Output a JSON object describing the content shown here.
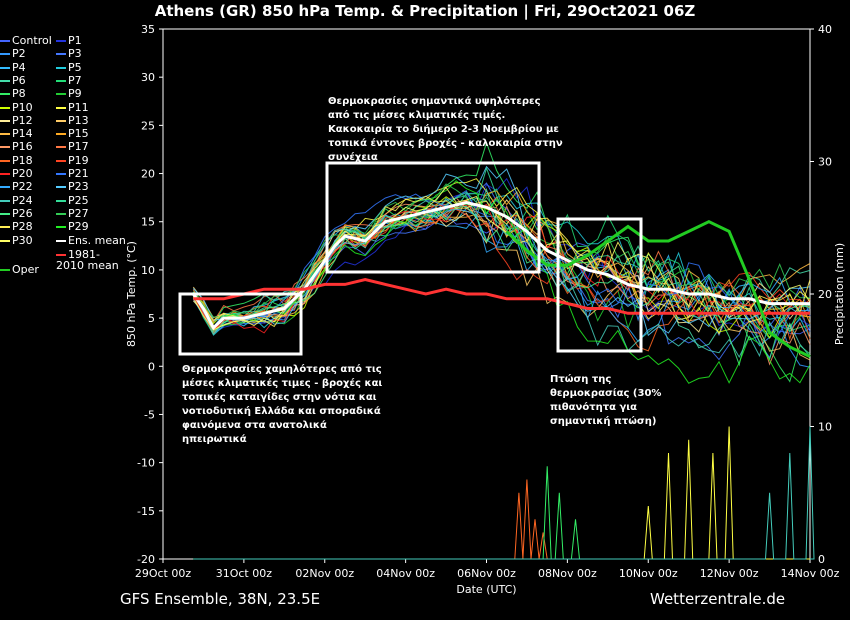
{
  "title": "Athens  (GR)  850 hPa Temp. & Precipitation | Fri, 29Oct2021 06Z",
  "footer_left": "GFS Ensemble, 38N, 23.5E",
  "footer_right": "Wetterzentrale.de",
  "annotations": {
    "top": [
      "Θερμοκρασίες σημαντικά υψηλότερες",
      "από τις μέσες κλιματικές τιμές.",
      "Κακοκαιρία το διήμερο 2-3 Νοεμβρίου με",
      "τοπικά έντονες βροχές - καλοκαιρία στην",
      "συνέχεια"
    ],
    "bottom_left": [
      "Θερμοκρασίες χαμηλότερες από τις",
      "μέσες κλιματικές τιμες - βροχές και",
      "τοπικές καταιγίδες στην νότια και",
      "νοτιοδυτική Ελλάδα και σποραδικά",
      "φαινόμενα στα ανατολικά",
      "ηπειρωτικά"
    ],
    "bottom_right": [
      "Πτώση της",
      "θερμοκρασίας (30%",
      "πιθανότητα για",
      "σημαντική πτώση)"
    ]
  },
  "legend": [
    {
      "label": "Control",
      "color": "#4466ff"
    },
    {
      "label": "P1",
      "color": "#2233dd"
    },
    {
      "label": "P2",
      "color": "#3399ff"
    },
    {
      "label": "P3",
      "color": "#4477ff"
    },
    {
      "label": "P4",
      "color": "#33bbff"
    },
    {
      "label": "P5",
      "color": "#22ccdd"
    },
    {
      "label": "P6",
      "color": "#44ddaa"
    },
    {
      "label": "P7",
      "color": "#22dd77"
    },
    {
      "label": "P8",
      "color": "#33ee66"
    },
    {
      "label": "P9",
      "color": "#22cc33"
    },
    {
      "label": "P10",
      "color": "#ccff00"
    },
    {
      "label": "P11",
      "color": "#ffff44"
    },
    {
      "label": "P12",
      "color": "#ffee99"
    },
    {
      "label": "P13",
      "color": "#ffcc66"
    },
    {
      "label": "P14",
      "color": "#ffbb44"
    },
    {
      "label": "P15",
      "color": "#ffaa22"
    },
    {
      "label": "P16",
      "color": "#ff9966"
    },
    {
      "label": "P17",
      "color": "#ff7744"
    },
    {
      "label": "P18",
      "color": "#ff6622"
    },
    {
      "label": "P19",
      "color": "#ff4422"
    },
    {
      "label": "P20",
      "color": "#ff2222"
    },
    {
      "label": "P21",
      "color": "#3377ff"
    },
    {
      "label": "P22",
      "color": "#33aaff"
    },
    {
      "label": "P23",
      "color": "#55ccff"
    },
    {
      "label": "P24",
      "color": "#44ccbb"
    },
    {
      "label": "P25",
      "color": "#33dd99"
    },
    {
      "label": "P26",
      "color": "#44ee88"
    },
    {
      "label": "P27",
      "color": "#33cc55"
    },
    {
      "label": "P28",
      "color": "#ffee55"
    },
    {
      "label": "P29",
      "color": "#22ee22"
    },
    {
      "label": "P30",
      "color": "#ffff66"
    },
    {
      "label": "Ens. mean",
      "color": "#ffffff"
    },
    {
      "label": "1981-2010 mean",
      "color": "#ff3333"
    },
    {
      "label": "Oper",
      "color": "#22cc22"
    }
  ],
  "chart_data": {
    "type": "line",
    "xlabel": "Date (UTC)",
    "ylabel": "850 hPa Temp. (°C)",
    "y2label": "Precipitation (mm)",
    "x_ticks": [
      "29Oct 00z",
      "31Oct 00z",
      "02Nov 00z",
      "04Nov 00z",
      "06Nov 00z",
      "08Nov 00z",
      "10Nov 00z",
      "12Nov 00z",
      "14Nov 00z"
    ],
    "ylim": [
      -20,
      35
    ],
    "y_ticks": [
      35,
      30,
      25,
      20,
      15,
      10,
      5,
      0,
      -5,
      -10,
      -15,
      -20
    ],
    "y2lim": [
      0,
      40
    ],
    "y2_ticks": [
      40,
      30,
      20,
      10,
      0
    ],
    "x_range_days": [
      0,
      16
    ],
    "grid": false,
    "series": [
      {
        "name": "Ens. mean",
        "color": "#ffffff",
        "width": 3,
        "x": [
          0.75,
          1,
          1.25,
          1.5,
          2,
          2.5,
          3,
          3.5,
          4,
          4.25,
          4.5,
          5,
          5.5,
          6,
          6.5,
          7,
          7.5,
          8,
          8.5,
          9,
          9.5,
          10,
          10.5,
          11,
          11.5,
          12,
          12.5,
          13,
          13.5,
          14,
          14.5,
          15,
          15.5,
          16
        ],
        "y": [
          7.5,
          6,
          4,
          5,
          5,
          5.5,
          6,
          8,
          11,
          12.5,
          13.5,
          13,
          15,
          15.5,
          16,
          16.5,
          17,
          16.5,
          15.5,
          14,
          12,
          11,
          10,
          9.5,
          8.5,
          8,
          8,
          7.5,
          7.5,
          7,
          7,
          6.5,
          6.5,
          6.5
        ]
      },
      {
        "name": "1981-2010 mean",
        "color": "#ff3333",
        "width": 3,
        "x": [
          0.75,
          1.5,
          2,
          2.5,
          3,
          3.5,
          4,
          4.5,
          5,
          5.5,
          6,
          6.5,
          7,
          7.5,
          8,
          8.5,
          9,
          9.5,
          10,
          10.5,
          11,
          11.5,
          12,
          12.5,
          13,
          13.5,
          14,
          14.5,
          15,
          15.5,
          16
        ],
        "y": [
          7,
          7,
          7.5,
          8,
          8,
          8,
          8.5,
          8.5,
          9,
          8.5,
          8,
          7.5,
          8,
          7.5,
          7.5,
          7,
          7,
          7,
          6.5,
          6,
          6,
          5.5,
          5.5,
          5.5,
          5.5,
          5.5,
          5.5,
          5.5,
          5.5,
          5.5,
          5.5
        ]
      },
      {
        "name": "Oper",
        "color": "#22cc22",
        "width": 3,
        "x": [
          8.5,
          9,
          9.5,
          10,
          10.5,
          11,
          11.5,
          12,
          12.5,
          13,
          13.5,
          14,
          14.5,
          15,
          15.5,
          16
        ],
        "y": [
          14,
          12,
          10.5,
          10.5,
          11.5,
          13,
          14.5,
          13,
          13,
          14,
          15,
          14,
          9,
          3.5,
          2,
          1
        ]
      }
    ],
    "precip": [
      {
        "color": "#ff6622",
        "x": [
          8.8,
          9.0,
          9.2,
          9.4
        ],
        "y": [
          5,
          6,
          3,
          2
        ]
      },
      {
        "color": "#33ee66",
        "x": [
          9.5,
          9.8,
          10.2
        ],
        "y": [
          7,
          5,
          3
        ]
      },
      {
        "color": "#ffff44",
        "x": [
          12.0,
          12.5,
          13.0,
          13.6,
          14.0
        ],
        "y": [
          4,
          8,
          9,
          8,
          10
        ]
      },
      {
        "color": "#44ccbb",
        "x": [
          15.0,
          15.5,
          16.0
        ],
        "y": [
          5,
          8,
          10
        ]
      }
    ]
  }
}
